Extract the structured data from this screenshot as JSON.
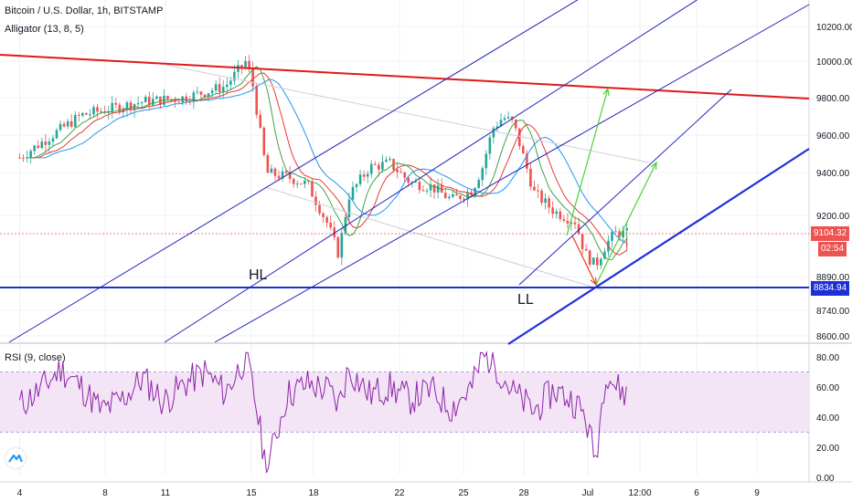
{
  "header": {
    "title": "Bitcoin / U.S. Dollar, 1h, BITSTAMP",
    "indicator": "Alligator (13, 8, 5)"
  },
  "rsi_panel": {
    "title": "RSI (9, close)"
  },
  "price_tags": {
    "current": "9104.32",
    "countdown": "02:54",
    "support": "8834.94"
  },
  "annotations": {
    "hl": "HL",
    "ll": "LL"
  },
  "colors": {
    "candle_up": "#26a69a",
    "candle_down": "#ef5350",
    "trend_line": "#e01919",
    "support_line": "#1f2fd8",
    "channel": "#2323b8",
    "target_arrow": "#4cd137",
    "drop_arrow": "#e84118",
    "rsi_line": "#8e24aa",
    "rsi_band": "#f3e5f5"
  },
  "chart_data": [
    {
      "type": "line",
      "title": "Bitcoin / U.S. Dollar, 1h, BITSTAMP",
      "x_tick_labels": [
        "4",
        "8",
        "11",
        "15",
        "18",
        "22",
        "25",
        "28",
        "Jul",
        "12:00",
        "6",
        "9"
      ],
      "y_tick_labels": [
        "10200.00",
        "10000.00",
        "9800.00",
        "9600.00",
        "9400.00",
        "9200.00",
        "8890.00",
        "8740.00",
        "8600.00"
      ],
      "ylim": [
        8580,
        10310
      ],
      "series": [
        {
          "name": "Bitcoin / U.S. Dollar",
          "x": [
            0,
            3,
            6,
            8,
            10,
            11,
            11.3,
            12,
            13,
            14,
            15,
            15.5,
            16,
            17,
            18,
            19,
            20,
            21,
            22,
            22.5,
            23,
            23.5,
            24,
            25,
            26,
            27,
            27.5,
            28,
            28.5,
            29,
            29.6
          ],
          "y": [
            9500,
            9720,
            9790,
            9810,
            9870,
            10000,
            9900,
            9420,
            9400,
            9360,
            9150,
            9000,
            9300,
            9450,
            9470,
            9370,
            9350,
            9280,
            9330,
            9450,
            9650,
            9710,
            9680,
            9320,
            9220,
            9170,
            9000,
            8940,
            9050,
            9110,
            9104
          ]
        }
      ],
      "annotations": [
        "HL",
        "LL"
      ],
      "levels": [
        9104.32,
        8834.94
      ]
    },
    {
      "type": "line",
      "title": "RSI (9, close)",
      "y_tick_labels": [
        "80.00",
        "60.00",
        "40.00",
        "20.00",
        "0.00"
      ],
      "ylim": [
        0,
        84
      ],
      "band": [
        30,
        70
      ],
      "series": [
        {
          "name": "RSI (9, close)",
          "x": [
            0,
            1,
            2,
            3,
            4,
            5,
            6,
            7,
            8,
            9,
            10,
            11,
            11.5,
            12,
            13,
            14,
            15,
            15.5,
            16,
            17,
            18,
            19,
            20,
            21,
            22,
            22.5,
            23,
            24,
            25,
            26,
            27,
            27.5,
            28,
            28.5,
            29,
            29.6
          ],
          "y": [
            48,
            58,
            72,
            60,
            44,
            52,
            66,
            50,
            62,
            70,
            56,
            80,
            48,
            4,
            55,
            62,
            58,
            48,
            72,
            55,
            60,
            52,
            58,
            46,
            60,
            80,
            78,
            56,
            44,
            58,
            50,
            40,
            12,
            72,
            60,
            54
          ]
        }
      ]
    }
  ]
}
